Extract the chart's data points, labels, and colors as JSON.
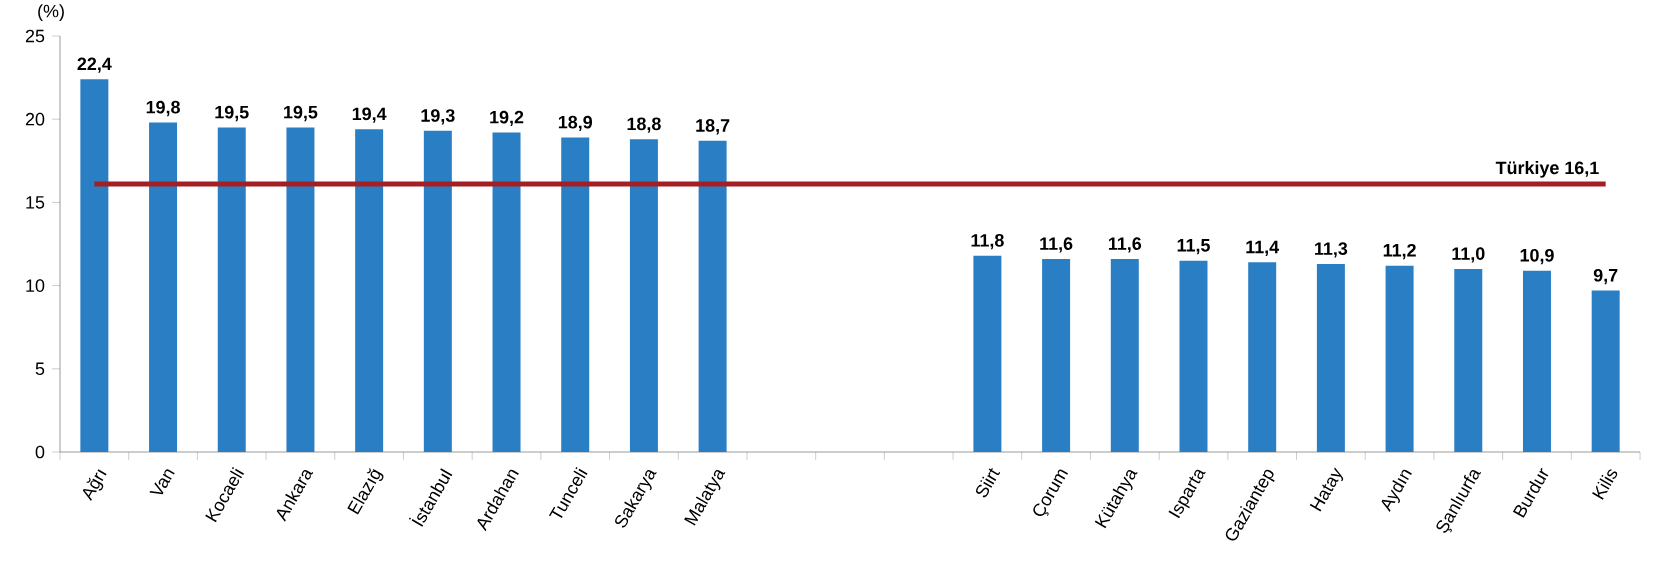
{
  "chart_data": {
    "type": "bar",
    "ylabel": "(%)",
    "categories": [
      "Ağrı",
      "Van",
      "Kocaeli",
      "Ankara",
      "Elazığ",
      "İstanbul",
      "Ardahan",
      "Tunceli",
      "Sakarya",
      "Malatya",
      null,
      null,
      null,
      "Siirt",
      "Çorum",
      "Kütahya",
      "Isparta",
      "Gaziantep",
      "Hatay",
      "Aydın",
      "Şanlıurfa",
      "Burdur",
      "Kilis"
    ],
    "values": [
      22.4,
      19.8,
      19.5,
      19.5,
      19.4,
      19.3,
      19.2,
      18.9,
      18.8,
      18.7,
      null,
      null,
      null,
      11.8,
      11.6,
      11.6,
      11.5,
      11.4,
      11.3,
      11.2,
      11.0,
      10.9,
      9.7
    ],
    "value_labels": [
      "22,4",
      "19,8",
      "19,5",
      "19,5",
      "19,4",
      "19,3",
      "19,2",
      "18,9",
      "18,8",
      "18,7",
      null,
      null,
      null,
      "11,8",
      "11,6",
      "11,6",
      "11,5",
      "11,4",
      "11,3",
      "11,2",
      "11,0",
      "10,9",
      "9,7"
    ],
    "color": "#2a7fc4",
    "ylim": [
      0,
      25
    ],
    "yticks": [
      0,
      5,
      10,
      15,
      20,
      25
    ],
    "ref_lines": [
      {
        "axis": "y",
        "value": 16.1,
        "label": "Türkiye 16,1",
        "color": "#a31f23"
      }
    ]
  }
}
